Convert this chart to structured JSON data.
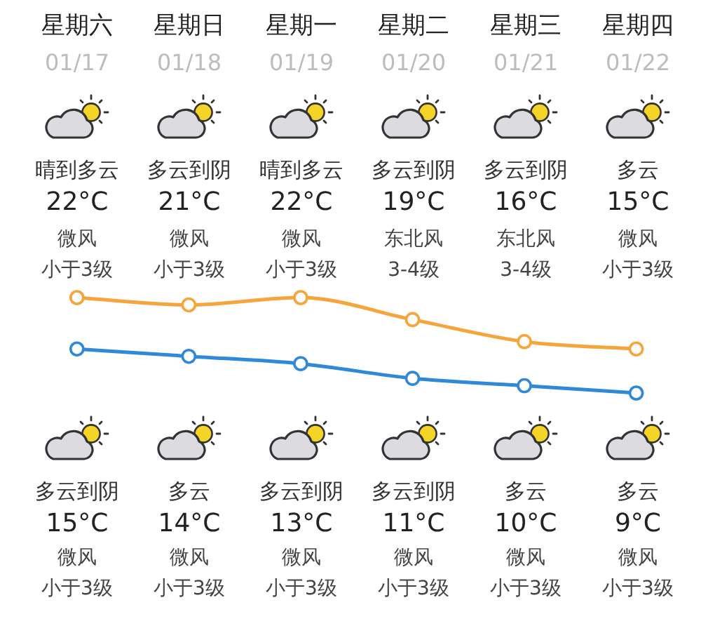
{
  "chart_data": {
    "type": "line",
    "categories": [
      "星期六",
      "星期日",
      "星期一",
      "星期二",
      "星期三",
      "星期四"
    ],
    "series": [
      {
        "color": "#f6a43c",
        "values": [
          22,
          21,
          22,
          19,
          16,
          15
        ],
        "value_labels": [
          "22°C",
          "21°C",
          "22°C",
          "19°C",
          "16°C",
          "15°C"
        ]
      },
      {
        "color": "#3088d8",
        "values": [
          15,
          14,
          13,
          11,
          10,
          9
        ],
        "value_labels": [
          "15°C",
          "14°C",
          "13°C",
          "11°C",
          "10°C",
          "9°C"
        ]
      }
    ],
    "marker": "circle",
    "annotations": [
      "01/17",
      "晴到多云",
      "微风",
      "小于3级",
      "多云到阴",
      "微风",
      "小于3级",
      "01/18",
      "多云到阴",
      "微风",
      "小于3级",
      "多云",
      "微风",
      "小于3级",
      "01/19",
      "晴到多云",
      "微风",
      "小于3级",
      "多云到阴",
      "微风",
      "小于3级",
      "01/20",
      "多云到阴",
      "东北风",
      "3-4级",
      "多云到阴",
      "微风",
      "小于3级",
      "01/21",
      "多云到阴",
      "东北风",
      "3-4级",
      "多云",
      "微风",
      "小于3级",
      "01/22",
      "多云",
      "微风",
      "小于3级",
      "多云",
      "微风",
      "小于3级"
    ]
  }
}
